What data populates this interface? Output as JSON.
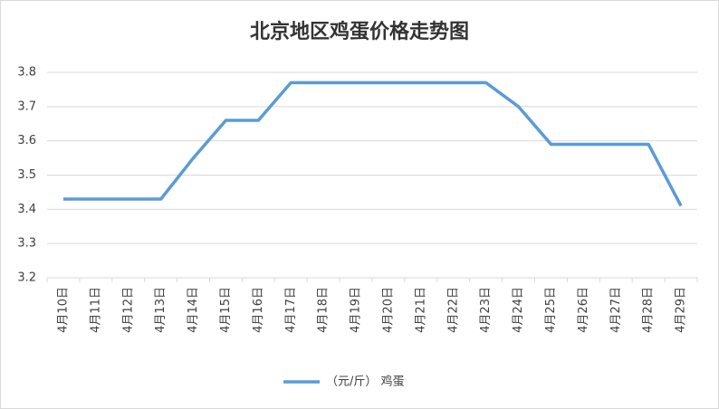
{
  "chart_data": {
    "type": "line",
    "title": "北京地区鸡蛋价格走势图",
    "categories": [
      "4月10日",
      "4月11日",
      "4月12日",
      "4月13日",
      "4月14日",
      "4月15日",
      "4月16日",
      "4月17日",
      "4月18日",
      "4月19日",
      "4月20日",
      "4月21日",
      "4月22日",
      "4月23日",
      "4月24日",
      "4月25日",
      "4月26日",
      "4月27日",
      "4月28日",
      "4月29日"
    ],
    "series": [
      {
        "name": "（元/斤） 鸡蛋",
        "color": "#5b9bd5",
        "values": [
          3.43,
          3.43,
          3.43,
          3.43,
          3.55,
          3.66,
          3.66,
          3.77,
          3.77,
          3.77,
          3.77,
          3.77,
          3.77,
          3.77,
          3.7,
          3.59,
          3.59,
          3.59,
          3.59,
          3.41
        ]
      }
    ],
    "ylim": [
      3.2,
      3.8
    ],
    "yticks": [
      3.2,
      3.3,
      3.4,
      3.5,
      3.6,
      3.7,
      3.8
    ],
    "grid": true,
    "legend": "bottom"
  }
}
